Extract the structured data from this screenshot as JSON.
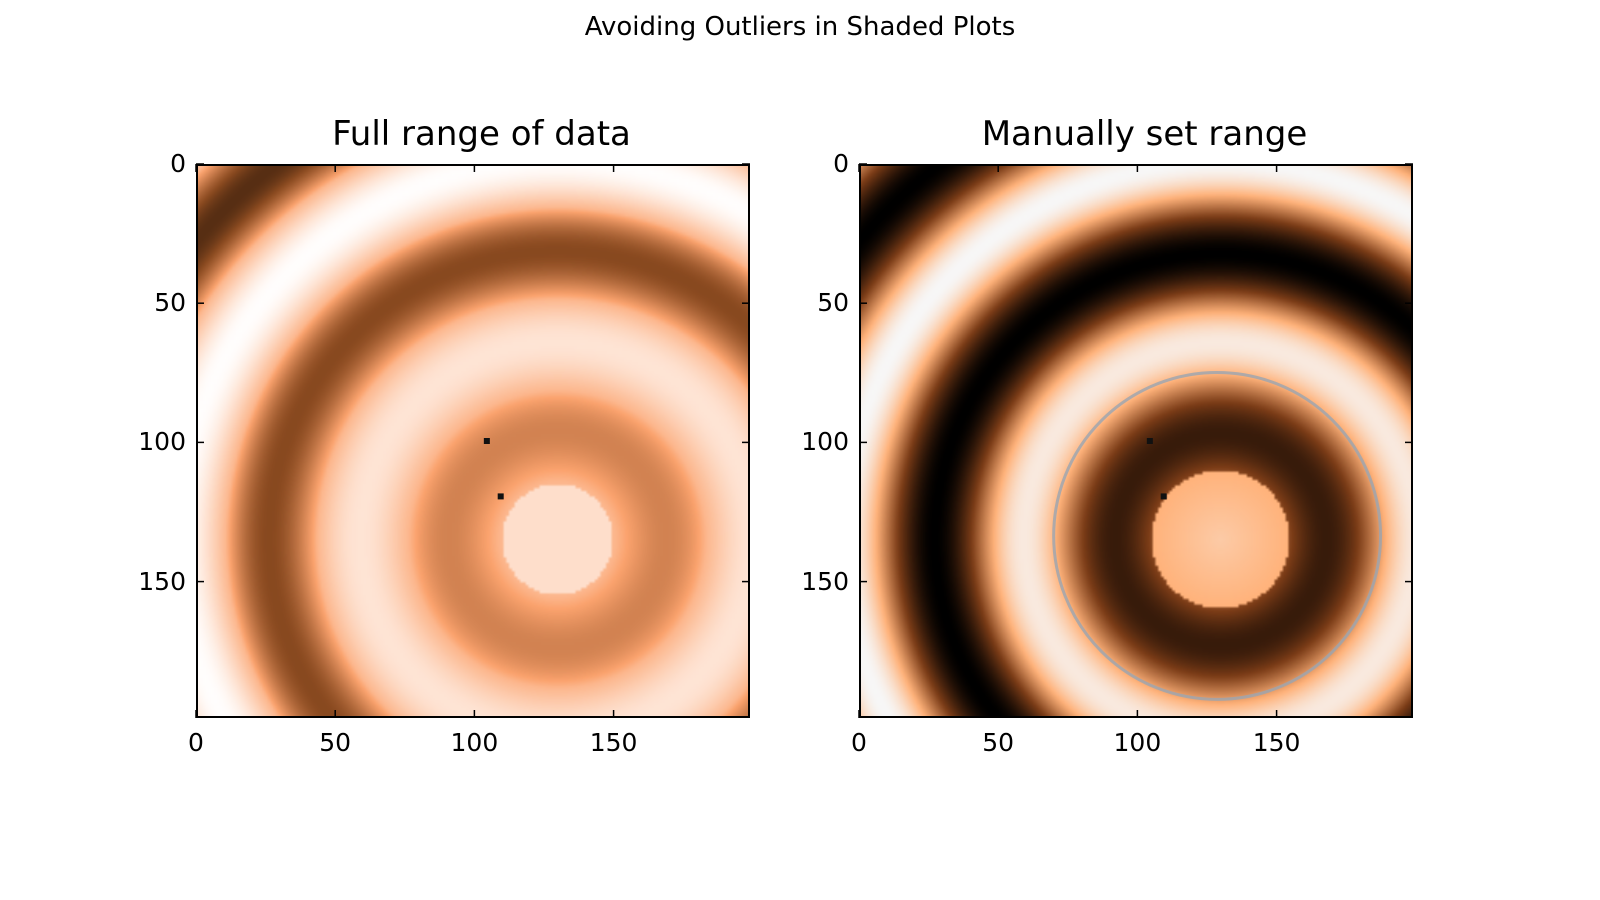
{
  "figure": {
    "suptitle": "Avoiding Outliers in Shaded Plots"
  },
  "chart_data": [
    {
      "type": "heatmap",
      "title": "Full range of data",
      "colormap": "gist_heat-like (black → dark brown → orange → white)",
      "color_range": "full data range (outliers dominate scale)",
      "xlim": [
        0,
        199
      ],
      "ylim": [
        199,
        0
      ],
      "x_ticks": [
        "0",
        "50",
        "100",
        "150"
      ],
      "y_ticks": [
        "0",
        "50",
        "100",
        "150"
      ],
      "rings_center": [
        130,
        135
      ],
      "outliers": [
        [
          105,
          100
        ],
        [
          110,
          120
        ]
      ],
      "colors": {
        "dark": "#0a0400",
        "mid": "#8a4a20",
        "light": "#fba36e",
        "pale": "#ffffff"
      }
    },
    {
      "type": "heatmap",
      "title": "Manually set range",
      "colormap": "gist_heat-like with stronger contrast",
      "color_range": "manually clipped (vmin/vmax set)",
      "xlim": [
        0,
        199
      ],
      "ylim": [
        199,
        0
      ],
      "x_ticks": [
        "0",
        "50",
        "100",
        "150"
      ],
      "y_ticks": [
        "0",
        "50",
        "100",
        "150"
      ],
      "rings_center": [
        130,
        135
      ],
      "outliers": [
        [
          105,
          100
        ],
        [
          110,
          120
        ]
      ],
      "colors": {
        "dark": "#000000",
        "mid": "#7b3c17",
        "light": "#ffb27a",
        "pale": "#f7f7f7",
        "ring": "#9aa5b1"
      }
    }
  ]
}
